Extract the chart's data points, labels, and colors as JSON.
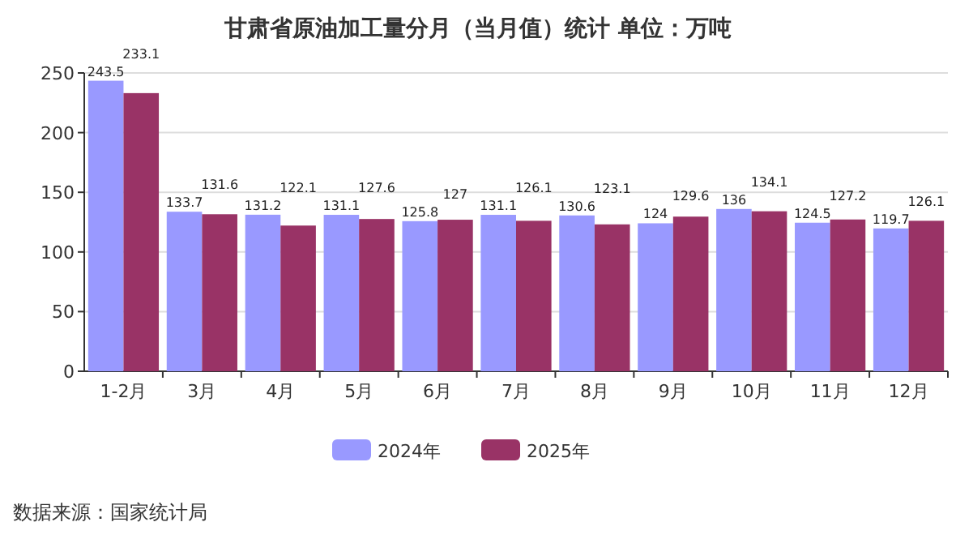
{
  "chart_data": {
    "type": "bar",
    "title": "甘肃省原油加工量分月（当月值）统计  单位：万吨",
    "categories": [
      "1-2月",
      "3月",
      "4月",
      "5月",
      "6月",
      "7月",
      "8月",
      "9月",
      "10月",
      "11月",
      "12月"
    ],
    "series": [
      {
        "name": "2024年",
        "color": "#9999ff",
        "values": [
          243.5,
          133.7,
          131.2,
          131.1,
          125.8,
          131.1,
          130.6,
          124,
          136,
          124.5,
          119.7
        ]
      },
      {
        "name": "2025年",
        "color": "#993366",
        "values": [
          233.1,
          131.6,
          122.1,
          127.6,
          127,
          126.1,
          123.1,
          129.6,
          134.1,
          127.2,
          126.1
        ]
      }
    ],
    "ylim": [
      0,
      250
    ],
    "yticks": [
      0,
      50,
      100,
      150,
      200,
      250
    ],
    "grid": "y",
    "legend": "bottom",
    "data_labels": true,
    "annotations": [
      "数据来源：国家统计局"
    ]
  }
}
